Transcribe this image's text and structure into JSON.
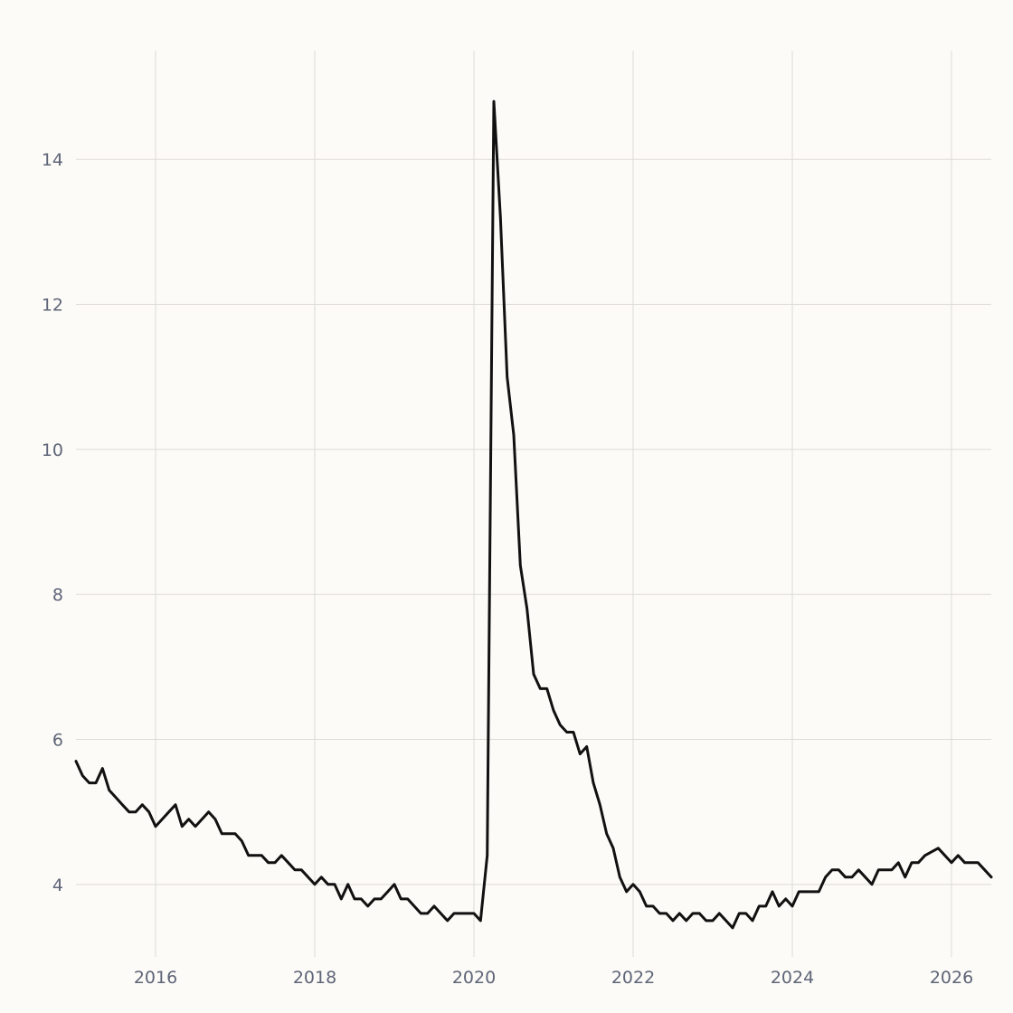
{
  "chart_data": {
    "type": "line",
    "title": "",
    "xlabel": "",
    "ylabel": "",
    "grid": true,
    "legend": "none",
    "colors": {
      "background": "#fcfbf7",
      "line": "#111111",
      "grid": "#dedbd6",
      "tick_text": "#5f6578"
    },
    "xlim": [
      "2015-01",
      "2026-07"
    ],
    "ylim": [
      3.0,
      15.5
    ],
    "x_ticks": [
      "2016",
      "2018",
      "2020",
      "2022",
      "2024",
      "2026"
    ],
    "y_ticks": [
      "4",
      "6",
      "8",
      "10",
      "12",
      "14"
    ],
    "series": [
      {
        "x": [
          "2015-01",
          "2015-02",
          "2015-03",
          "2015-04",
          "2015-05",
          "2015-06",
          "2015-07",
          "2015-08",
          "2015-09",
          "2015-10",
          "2015-11",
          "2015-12",
          "2016-01",
          "2016-02",
          "2016-03",
          "2016-04",
          "2016-05",
          "2016-06",
          "2016-07",
          "2016-08",
          "2016-09",
          "2016-10",
          "2016-11",
          "2016-12",
          "2017-01",
          "2017-02",
          "2017-03",
          "2017-04",
          "2017-05",
          "2017-06",
          "2017-07",
          "2017-08",
          "2017-09",
          "2017-10",
          "2017-11",
          "2017-12",
          "2018-01",
          "2018-02",
          "2018-03",
          "2018-04",
          "2018-05",
          "2018-06",
          "2018-07",
          "2018-08",
          "2018-09",
          "2018-10",
          "2018-11",
          "2018-12",
          "2019-01",
          "2019-02",
          "2019-03",
          "2019-04",
          "2019-05",
          "2019-06",
          "2019-07",
          "2019-08",
          "2019-09",
          "2019-10",
          "2019-11",
          "2019-12",
          "2020-01",
          "2020-02",
          "2020-03",
          "2020-04",
          "2020-05",
          "2020-06",
          "2020-07",
          "2020-08",
          "2020-09",
          "2020-10",
          "2020-11",
          "2020-12",
          "2021-01",
          "2021-02",
          "2021-03",
          "2021-04",
          "2021-05",
          "2021-06",
          "2021-07",
          "2021-08",
          "2021-09",
          "2021-10",
          "2021-11",
          "2021-12",
          "2022-01",
          "2022-02",
          "2022-03",
          "2022-04",
          "2022-05",
          "2022-06",
          "2022-07",
          "2022-08",
          "2022-09",
          "2022-10",
          "2022-11",
          "2022-12",
          "2023-01",
          "2023-02",
          "2023-03",
          "2023-04",
          "2023-05",
          "2023-06",
          "2023-07",
          "2023-08",
          "2023-09",
          "2023-10",
          "2023-11",
          "2023-12",
          "2024-01",
          "2024-02",
          "2024-03",
          "2024-04",
          "2024-05",
          "2024-06",
          "2024-07",
          "2024-08",
          "2024-09",
          "2024-10",
          "2024-11",
          "2024-12",
          "2025-01",
          "2025-02",
          "2025-03",
          "2025-04",
          "2025-05",
          "2025-06",
          "2025-07",
          "2025-08",
          "2025-09",
          "2025-10",
          "2025-11",
          "2025-12",
          "2026-01",
          "2026-02",
          "2026-03",
          "2026-04",
          "2026-05",
          "2026-06",
          "2026-07"
        ],
        "values": [
          5.7,
          5.5,
          5.4,
          5.4,
          5.6,
          5.3,
          5.2,
          5.1,
          5.0,
          5.0,
          5.1,
          5.0,
          4.8,
          4.9,
          5.0,
          5.1,
          4.8,
          4.9,
          4.8,
          4.9,
          5.0,
          4.9,
          4.7,
          4.7,
          4.7,
          4.6,
          4.4,
          4.4,
          4.4,
          4.3,
          4.3,
          4.4,
          4.3,
          4.2,
          4.2,
          4.1,
          4.0,
          4.1,
          4.0,
          4.0,
          3.8,
          4.0,
          3.8,
          3.8,
          3.7,
          3.8,
          3.8,
          3.9,
          4.0,
          3.8,
          3.8,
          3.7,
          3.6,
          3.6,
          3.7,
          3.6,
          3.5,
          3.6,
          3.6,
          3.6,
          3.6,
          3.5,
          4.4,
          14.8,
          13.2,
          11.0,
          10.2,
          8.4,
          7.8,
          6.9,
          6.7,
          6.7,
          6.4,
          6.2,
          6.1,
          6.1,
          5.8,
          5.9,
          5.4,
          5.1,
          4.7,
          4.5,
          4.1,
          3.9,
          4.0,
          3.9,
          3.7,
          3.7,
          3.6,
          3.6,
          3.5,
          3.6,
          3.5,
          3.6,
          3.6,
          3.5,
          3.5,
          3.6,
          3.5,
          3.4,
          3.6,
          3.6,
          3.5,
          3.7,
          3.7,
          3.9,
          3.7,
          3.8,
          3.7,
          3.9,
          3.9,
          3.9,
          3.9,
          4.1,
          4.2,
          4.2,
          4.1,
          4.1,
          4.2,
          4.1,
          4.0,
          4.2,
          4.2,
          4.2,
          4.3,
          4.1,
          4.3,
          4.3,
          4.4,
          4.45,
          4.5,
          4.4,
          4.3,
          4.4,
          4.3,
          4.3,
          4.3,
          4.2,
          4.1
        ]
      }
    ]
  }
}
